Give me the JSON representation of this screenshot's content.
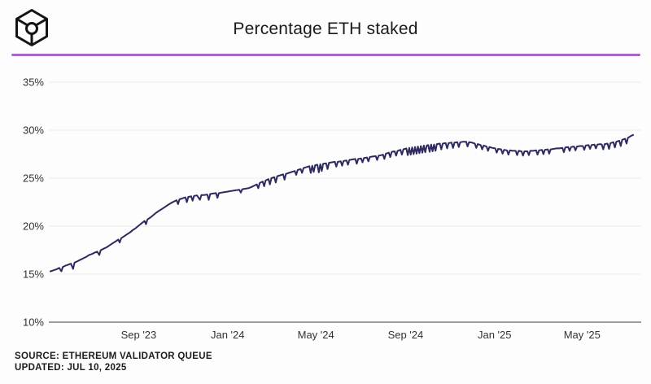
{
  "header": {
    "title": "Percentage ETH staked",
    "divider_color": "#a866c4",
    "logo_color": "#141414"
  },
  "footer": {
    "source": "SOURCE: ETHEREUM VALIDATOR QUEUE",
    "updated": "UPDATED: JUL 10, 2025"
  },
  "chart_data": {
    "type": "line",
    "title": "Percentage ETH staked",
    "line_color": "#2d2a5e",
    "grid_color": "#ebebeb",
    "axis_color": "#9c9c9c",
    "tick_label_color": "#333333",
    "grid": "horizontal-only",
    "legend_position": "none",
    "ylim": [
      10,
      35
    ],
    "y_ticks": [
      {
        "value": 35,
        "label": "35%"
      },
      {
        "value": 30,
        "label": "30%"
      },
      {
        "value": 25,
        "label": "25%"
      },
      {
        "value": 20,
        "label": "20%"
      },
      {
        "value": 15,
        "label": "15%"
      },
      {
        "value": 10,
        "label": "10%"
      }
    ],
    "x_unit": "days since 2023-05-03",
    "x_range_days": [
      0,
      799
    ],
    "x_ticks": [
      {
        "day": 121,
        "label": "Sep '23"
      },
      {
        "day": 243,
        "label": "Jan '24"
      },
      {
        "day": 364,
        "label": "May '24"
      },
      {
        "day": 487,
        "label": "Sep '24"
      },
      {
        "day": 609,
        "label": "Jan '25"
      },
      {
        "day": 729,
        "label": "May '25"
      }
    ],
    "series": [
      {
        "name": "Percentage ETH staked",
        "points": [
          [
            0,
            15.3
          ],
          [
            4,
            15.4
          ],
          [
            8,
            15.5
          ],
          [
            12,
            15.65
          ],
          [
            15,
            15.3
          ],
          [
            17,
            15.75
          ],
          [
            21,
            15.9
          ],
          [
            25,
            16.0
          ],
          [
            28,
            16.1
          ],
          [
            31,
            15.55
          ],
          [
            33,
            16.2
          ],
          [
            37,
            16.35
          ],
          [
            41,
            16.5
          ],
          [
            45,
            16.65
          ],
          [
            49,
            16.8
          ],
          [
            53,
            17.0
          ],
          [
            57,
            17.1
          ],
          [
            61,
            17.25
          ],
          [
            64,
            17.35
          ],
          [
            67,
            17.0
          ],
          [
            69,
            17.5
          ],
          [
            73,
            17.65
          ],
          [
            77,
            17.8
          ],
          [
            81,
            18.0
          ],
          [
            85,
            18.2
          ],
          [
            89,
            18.4
          ],
          [
            93,
            18.6
          ],
          [
            95,
            18.3
          ],
          [
            97,
            18.75
          ],
          [
            101,
            18.95
          ],
          [
            105,
            19.15
          ],
          [
            109,
            19.35
          ],
          [
            113,
            19.6
          ],
          [
            117,
            19.8
          ],
          [
            121,
            20.05
          ],
          [
            125,
            20.3
          ],
          [
            129,
            20.55
          ],
          [
            131,
            20.2
          ],
          [
            133,
            20.7
          ],
          [
            137,
            20.9
          ],
          [
            141,
            21.15
          ],
          [
            145,
            21.4
          ],
          [
            149,
            21.6
          ],
          [
            153,
            21.8
          ],
          [
            157,
            22.0
          ],
          [
            161,
            22.2
          ],
          [
            165,
            22.4
          ],
          [
            169,
            22.55
          ],
          [
            173,
            22.7
          ],
          [
            175,
            22.3
          ],
          [
            177,
            22.8
          ],
          [
            181,
            22.9
          ],
          [
            185,
            23.0
          ],
          [
            187,
            22.5
          ],
          [
            189,
            23.05
          ],
          [
            193,
            23.1
          ],
          [
            195,
            22.65
          ],
          [
            197,
            23.15
          ],
          [
            201,
            23.2
          ],
          [
            205,
            22.75
          ],
          [
            207,
            23.25
          ],
          [
            211,
            23.25
          ],
          [
            215,
            23.3
          ],
          [
            217,
            22.75
          ],
          [
            219,
            23.35
          ],
          [
            223,
            23.4
          ],
          [
            227,
            23.45
          ],
          [
            229,
            22.95
          ],
          [
            231,
            23.45
          ],
          [
            235,
            23.5
          ],
          [
            239,
            23.55
          ],
          [
            243,
            23.6
          ],
          [
            247,
            23.65
          ],
          [
            251,
            23.7
          ],
          [
            255,
            23.75
          ],
          [
            259,
            23.8
          ],
          [
            261,
            23.5
          ],
          [
            263,
            23.85
          ],
          [
            267,
            23.9
          ],
          [
            271,
            23.95
          ],
          [
            275,
            24.05
          ],
          [
            279,
            24.2
          ],
          [
            283,
            24.35
          ],
          [
            285,
            23.95
          ],
          [
            287,
            24.5
          ],
          [
            291,
            24.65
          ],
          [
            293,
            24.15
          ],
          [
            295,
            24.75
          ],
          [
            299,
            24.9
          ],
          [
            301,
            24.35
          ],
          [
            303,
            25.0
          ],
          [
            307,
            25.1
          ],
          [
            309,
            24.55
          ],
          [
            311,
            25.2
          ],
          [
            315,
            25.3
          ],
          [
            319,
            25.4
          ],
          [
            321,
            24.85
          ],
          [
            323,
            25.45
          ],
          [
            327,
            25.55
          ],
          [
            331,
            25.65
          ],
          [
            335,
            25.75
          ],
          [
            337,
            25.35
          ],
          [
            339,
            25.85
          ],
          [
            343,
            25.95
          ],
          [
            345,
            25.55
          ],
          [
            347,
            26.05
          ],
          [
            351,
            26.15
          ],
          [
            355,
            26.25
          ],
          [
            357,
            25.55
          ],
          [
            359,
            26.3
          ],
          [
            361,
            25.65
          ],
          [
            363,
            26.35
          ],
          [
            366,
            26.4
          ],
          [
            368,
            25.6
          ],
          [
            370,
            26.45
          ],
          [
            372,
            25.75
          ],
          [
            374,
            26.5
          ],
          [
            378,
            26.55
          ],
          [
            380,
            25.95
          ],
          [
            382,
            26.6
          ],
          [
            386,
            26.65
          ],
          [
            390,
            26.7
          ],
          [
            392,
            26.2
          ],
          [
            394,
            26.7
          ],
          [
            398,
            26.75
          ],
          [
            400,
            26.3
          ],
          [
            402,
            26.8
          ],
          [
            406,
            26.85
          ],
          [
            408,
            26.4
          ],
          [
            410,
            26.9
          ],
          [
            414,
            26.95
          ],
          [
            418,
            27.0
          ],
          [
            420,
            26.5
          ],
          [
            422,
            27.0
          ],
          [
            426,
            27.05
          ],
          [
            428,
            26.65
          ],
          [
            430,
            27.1
          ],
          [
            434,
            27.15
          ],
          [
            436,
            26.75
          ],
          [
            438,
            27.2
          ],
          [
            442,
            27.25
          ],
          [
            446,
            27.3
          ],
          [
            448,
            26.9
          ],
          [
            450,
            27.35
          ],
          [
            454,
            27.4
          ],
          [
            456,
            27.45
          ],
          [
            458,
            27.0
          ],
          [
            460,
            27.55
          ],
          [
            464,
            27.65
          ],
          [
            466,
            27.2
          ],
          [
            468,
            27.75
          ],
          [
            472,
            27.8
          ],
          [
            474,
            27.35
          ],
          [
            476,
            27.85
          ],
          [
            480,
            27.95
          ],
          [
            482,
            27.45
          ],
          [
            484,
            28.0
          ],
          [
            486,
            28.05
          ],
          [
            488,
            28.1
          ],
          [
            490,
            27.4
          ],
          [
            492,
            28.15
          ],
          [
            494,
            27.45
          ],
          [
            496,
            28.2
          ],
          [
            498,
            27.5
          ],
          [
            500,
            28.25
          ],
          [
            502,
            27.55
          ],
          [
            504,
            28.3
          ],
          [
            506,
            27.6
          ],
          [
            508,
            28.35
          ],
          [
            510,
            27.65
          ],
          [
            512,
            28.4
          ],
          [
            514,
            27.7
          ],
          [
            516,
            28.4
          ],
          [
            518,
            28.45
          ],
          [
            520,
            27.75
          ],
          [
            522,
            28.5
          ],
          [
            524,
            27.8
          ],
          [
            526,
            28.5
          ],
          [
            528,
            27.85
          ],
          [
            530,
            28.55
          ],
          [
            534,
            28.6
          ],
          [
            536,
            28.0
          ],
          [
            538,
            28.6
          ],
          [
            542,
            28.65
          ],
          [
            544,
            28.1
          ],
          [
            546,
            28.65
          ],
          [
            550,
            28.7
          ],
          [
            552,
            28.15
          ],
          [
            554,
            28.7
          ],
          [
            558,
            28.75
          ],
          [
            560,
            28.25
          ],
          [
            562,
            28.75
          ],
          [
            566,
            28.8
          ],
          [
            570,
            28.8
          ],
          [
            572,
            28.3
          ],
          [
            574,
            28.75
          ],
          [
            578,
            28.7
          ],
          [
            582,
            28.6
          ],
          [
            584,
            28.15
          ],
          [
            586,
            28.55
          ],
          [
            590,
            28.45
          ],
          [
            592,
            28.0
          ],
          [
            594,
            28.4
          ],
          [
            598,
            28.3
          ],
          [
            600,
            27.85
          ],
          [
            602,
            28.25
          ],
          [
            606,
            28.15
          ],
          [
            610,
            28.1
          ],
          [
            612,
            27.65
          ],
          [
            614,
            28.05
          ],
          [
            618,
            28.0
          ],
          [
            620,
            27.55
          ],
          [
            622,
            27.95
          ],
          [
            626,
            27.9
          ],
          [
            628,
            27.45
          ],
          [
            630,
            27.9
          ],
          [
            634,
            27.85
          ],
          [
            638,
            27.85
          ],
          [
            640,
            27.4
          ],
          [
            642,
            27.85
          ],
          [
            646,
            27.8
          ],
          [
            648,
            27.35
          ],
          [
            650,
            27.8
          ],
          [
            654,
            27.8
          ],
          [
            656,
            27.4
          ],
          [
            658,
            27.85
          ],
          [
            662,
            27.85
          ],
          [
            666,
            27.9
          ],
          [
            668,
            27.45
          ],
          [
            670,
            27.9
          ],
          [
            674,
            27.95
          ],
          [
            676,
            27.5
          ],
          [
            678,
            27.95
          ],
          [
            682,
            28.0
          ],
          [
            684,
            27.55
          ],
          [
            686,
            28.0
          ],
          [
            690,
            28.05
          ],
          [
            694,
            28.1
          ],
          [
            698,
            28.1
          ],
          [
            702,
            28.15
          ],
          [
            704,
            27.7
          ],
          [
            706,
            28.2
          ],
          [
            710,
            28.25
          ],
          [
            712,
            27.85
          ],
          [
            714,
            28.25
          ],
          [
            718,
            28.3
          ],
          [
            720,
            27.9
          ],
          [
            722,
            28.3
          ],
          [
            726,
            28.35
          ],
          [
            730,
            28.35
          ],
          [
            732,
            27.95
          ],
          [
            734,
            28.4
          ],
          [
            738,
            28.45
          ],
          [
            740,
            28.05
          ],
          [
            742,
            28.45
          ],
          [
            746,
            28.5
          ],
          [
            748,
            28.1
          ],
          [
            750,
            28.5
          ],
          [
            754,
            28.55
          ],
          [
            756,
            28.5
          ],
          [
            758,
            28.0
          ],
          [
            760,
            28.55
          ],
          [
            764,
            28.6
          ],
          [
            766,
            28.05
          ],
          [
            768,
            28.65
          ],
          [
            772,
            28.75
          ],
          [
            774,
            28.2
          ],
          [
            776,
            28.8
          ],
          [
            780,
            28.9
          ],
          [
            782,
            28.35
          ],
          [
            784,
            29.0
          ],
          [
            788,
            29.1
          ],
          [
            790,
            28.6
          ],
          [
            792,
            29.2
          ],
          [
            794,
            29.3
          ],
          [
            796,
            29.4
          ],
          [
            799,
            29.5
          ]
        ]
      }
    ]
  }
}
